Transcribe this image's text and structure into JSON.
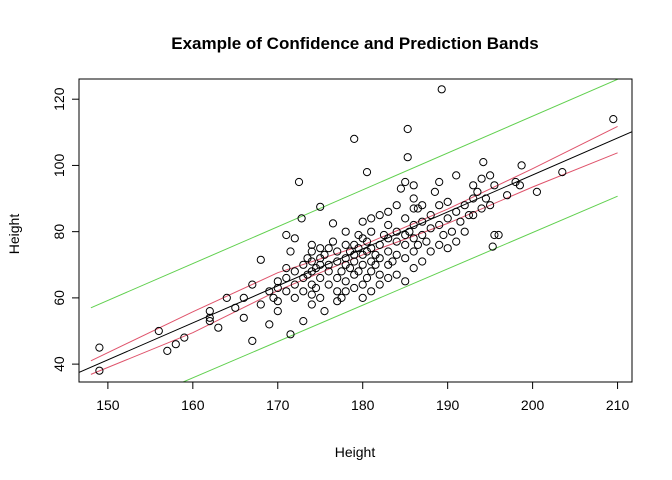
{
  "chart_data": {
    "type": "scatter",
    "title": "Example of Confidence and Prediction Bands",
    "xlabel": "Height",
    "ylabel": "Height",
    "xlim": [
      146.6,
      211.7
    ],
    "ylim": [
      34.6,
      126.1
    ],
    "x_ticks": [
      150,
      160,
      170,
      180,
      190,
      200,
      210
    ],
    "y_ticks": [
      40,
      60,
      80,
      100,
      120
    ],
    "grid": false,
    "legend": "none",
    "colors": {
      "points": "#000000",
      "regression": "#000000",
      "confidence": "#df536b",
      "prediction": "#61d04f"
    },
    "regression_line": {
      "x": [
        146.6,
        211.7
      ],
      "y": [
        37.5,
        110.2
      ]
    },
    "confidence_bands": {
      "upper": {
        "x": [
          148,
          160,
          170,
          180,
          190,
          200,
          210
        ],
        "y": [
          41.0,
          55.8,
          67.6,
          75.9,
          86.8,
          99.0,
          111.8
        ]
      },
      "lower": {
        "x": [
          148,
          160,
          170,
          180,
          190,
          200,
          210
        ],
        "y": [
          36.9,
          49.5,
          62.2,
          73.0,
          82.5,
          93.5,
          103.8
        ]
      }
    },
    "prediction_bands": {
      "upper": {
        "x": [
          148,
          210
        ],
        "y": [
          57.0,
          126.0
        ]
      },
      "lower": {
        "x": [
          148,
          210
        ],
        "y": [
          22.7,
          90.7
        ]
      }
    },
    "points": [
      [
        149,
        45
      ],
      [
        149,
        38
      ],
      [
        156,
        50
      ],
      [
        157,
        44
      ],
      [
        158,
        46
      ],
      [
        159,
        48
      ],
      [
        162,
        53
      ],
      [
        162,
        54
      ],
      [
        162,
        56
      ],
      [
        163,
        51
      ],
      [
        164,
        60
      ],
      [
        165,
        57
      ],
      [
        166,
        54
      ],
      [
        166,
        60
      ],
      [
        167,
        47
      ],
      [
        167,
        64
      ],
      [
        168,
        58
      ],
      [
        168,
        71.5
      ],
      [
        169,
        52
      ],
      [
        169,
        62
      ],
      [
        169.5,
        60
      ],
      [
        170,
        56
      ],
      [
        170,
        59
      ],
      [
        170,
        63
      ],
      [
        170,
        65
      ],
      [
        171,
        62
      ],
      [
        171,
        66
      ],
      [
        171,
        69
      ],
      [
        171,
        79
      ],
      [
        171.5,
        49
      ],
      [
        171.5,
        74
      ],
      [
        172,
        60
      ],
      [
        172,
        64
      ],
      [
        172,
        68
      ],
      [
        172,
        78
      ],
      [
        172.5,
        95
      ],
      [
        172.8,
        84
      ],
      [
        173,
        53
      ],
      [
        173,
        62
      ],
      [
        173,
        66
      ],
      [
        173,
        70
      ],
      [
        173.5,
        72
      ],
      [
        173.5,
        67
      ],
      [
        174,
        58
      ],
      [
        174,
        61
      ],
      [
        174,
        64
      ],
      [
        174,
        68
      ],
      [
        174,
        71
      ],
      [
        174,
        74
      ],
      [
        174,
        76
      ],
      [
        174.5,
        69
      ],
      [
        174.5,
        63
      ],
      [
        175,
        60
      ],
      [
        175,
        66
      ],
      [
        175,
        70
      ],
      [
        175,
        72
      ],
      [
        175,
        75
      ],
      [
        175,
        87.5
      ],
      [
        175.5,
        73
      ],
      [
        175.5,
        56
      ],
      [
        176,
        64
      ],
      [
        176,
        68
      ],
      [
        176,
        70
      ],
      [
        176,
        75
      ],
      [
        176.5,
        82.5
      ],
      [
        176.5,
        77
      ],
      [
        177,
        59
      ],
      [
        177,
        62
      ],
      [
        177,
        66
      ],
      [
        177,
        71
      ],
      [
        177,
        74
      ],
      [
        177.5,
        60
      ],
      [
        177.5,
        68
      ],
      [
        178,
        62
      ],
      [
        178,
        65
      ],
      [
        178,
        70
      ],
      [
        178,
        72
      ],
      [
        178,
        76
      ],
      [
        178,
        80
      ],
      [
        178.5,
        69
      ],
      [
        178.5,
        74
      ],
      [
        179,
        63
      ],
      [
        179,
        67
      ],
      [
        179,
        71
      ],
      [
        179,
        73
      ],
      [
        179,
        76
      ],
      [
        179,
        108
      ],
      [
        179.5,
        68
      ],
      [
        179.5,
        75
      ],
      [
        179.5,
        79
      ],
      [
        180,
        60
      ],
      [
        180,
        64
      ],
      [
        180,
        70
      ],
      [
        180,
        73
      ],
      [
        180,
        78
      ],
      [
        180,
        83
      ],
      [
        180.5,
        98
      ],
      [
        180.5,
        66
      ],
      [
        180.5,
        74
      ],
      [
        180.5,
        77
      ],
      [
        181,
        62
      ],
      [
        181,
        68
      ],
      [
        181,
        71
      ],
      [
        181,
        75
      ],
      [
        181,
        80
      ],
      [
        181,
        84
      ],
      [
        181.5,
        73
      ],
      [
        181.5,
        70
      ],
      [
        182,
        64
      ],
      [
        182,
        67
      ],
      [
        182,
        72
      ],
      [
        182,
        76
      ],
      [
        182,
        85
      ],
      [
        182.5,
        79
      ],
      [
        183,
        66
      ],
      [
        183,
        70
      ],
      [
        183,
        74
      ],
      [
        183,
        78
      ],
      [
        183,
        82
      ],
      [
        183,
        86
      ],
      [
        183.5,
        71
      ],
      [
        184,
        67
      ],
      [
        184,
        73
      ],
      [
        184,
        77
      ],
      [
        184,
        80
      ],
      [
        184,
        88
      ],
      [
        184.5,
        93
      ],
      [
        185,
        65
      ],
      [
        185,
        72
      ],
      [
        185,
        76
      ],
      [
        185,
        79
      ],
      [
        185,
        84
      ],
      [
        185,
        95
      ],
      [
        185.3,
        102.5
      ],
      [
        185.3,
        111
      ],
      [
        185.5,
        80
      ],
      [
        186,
        69
      ],
      [
        186,
        74
      ],
      [
        186,
        78
      ],
      [
        186,
        82
      ],
      [
        186,
        87
      ],
      [
        186,
        90
      ],
      [
        186,
        94
      ],
      [
        186.5,
        76
      ],
      [
        186.5,
        87
      ],
      [
        187,
        71
      ],
      [
        187,
        79
      ],
      [
        187,
        83
      ],
      [
        187,
        88
      ],
      [
        187.5,
        77
      ],
      [
        188,
        74
      ],
      [
        188,
        81
      ],
      [
        188,
        85
      ],
      [
        188.5,
        92
      ],
      [
        189,
        76
      ],
      [
        189,
        82
      ],
      [
        189,
        88
      ],
      [
        189,
        95
      ],
      [
        189.3,
        123
      ],
      [
        189.5,
        79
      ],
      [
        190,
        75
      ],
      [
        190,
        84
      ],
      [
        190,
        89
      ],
      [
        190.5,
        80
      ],
      [
        191,
        77
      ],
      [
        191,
        86
      ],
      [
        191,
        97
      ],
      [
        191.5,
        83
      ],
      [
        192,
        80
      ],
      [
        192,
        88
      ],
      [
        192.5,
        85
      ],
      [
        193,
        90
      ],
      [
        193,
        94
      ],
      [
        193,
        85
      ],
      [
        193.5,
        92
      ],
      [
        194,
        87
      ],
      [
        194,
        96
      ],
      [
        194.2,
        101
      ],
      [
        194.5,
        90
      ],
      [
        195,
        88
      ],
      [
        195,
        97
      ],
      [
        195.3,
        75.5
      ],
      [
        195.5,
        79
      ],
      [
        195.5,
        94
      ],
      [
        196,
        79
      ],
      [
        197,
        91
      ],
      [
        198,
        95
      ],
      [
        198.5,
        94
      ],
      [
        198.7,
        100
      ],
      [
        200.5,
        92
      ],
      [
        203.5,
        98
      ],
      [
        209.5,
        114
      ]
    ]
  }
}
